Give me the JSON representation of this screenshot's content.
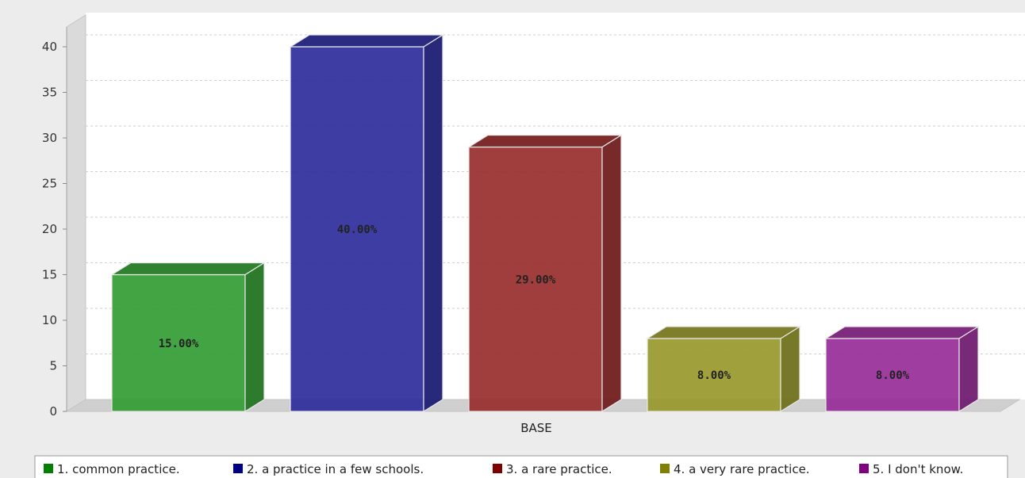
{
  "chart_data": {
    "type": "bar",
    "categories": [
      "BASE"
    ],
    "xlabel": "BASE",
    "ylim": [
      0,
      40
    ],
    "yticks": [
      0,
      5,
      10,
      15,
      20,
      25,
      30,
      35,
      40
    ],
    "grid": true,
    "legend_position": "bottom",
    "series": [
      {
        "name": "1. common practice.",
        "values": [
          15
        ],
        "label": "15.00%",
        "color": "#2e9a2e"
      },
      {
        "name": "2. a practice in a few schools.",
        "values": [
          40
        ],
        "label": "40.00%",
        "color": "#28289a"
      },
      {
        "name": "3. a rare practice.",
        "values": [
          29
        ],
        "label": "29.00%",
        "color": "#962828"
      },
      {
        "name": "4. a very rare practice.",
        "values": [
          8
        ],
        "label": "8.00%",
        "color": "#969628"
      },
      {
        "name": "5. I don't know.",
        "values": [
          8
        ],
        "label": "8.00%",
        "color": "#962896"
      }
    ],
    "legend_swatch_colors": [
      "#008000",
      "#000080",
      "#800000",
      "#808000",
      "#800080"
    ]
  }
}
